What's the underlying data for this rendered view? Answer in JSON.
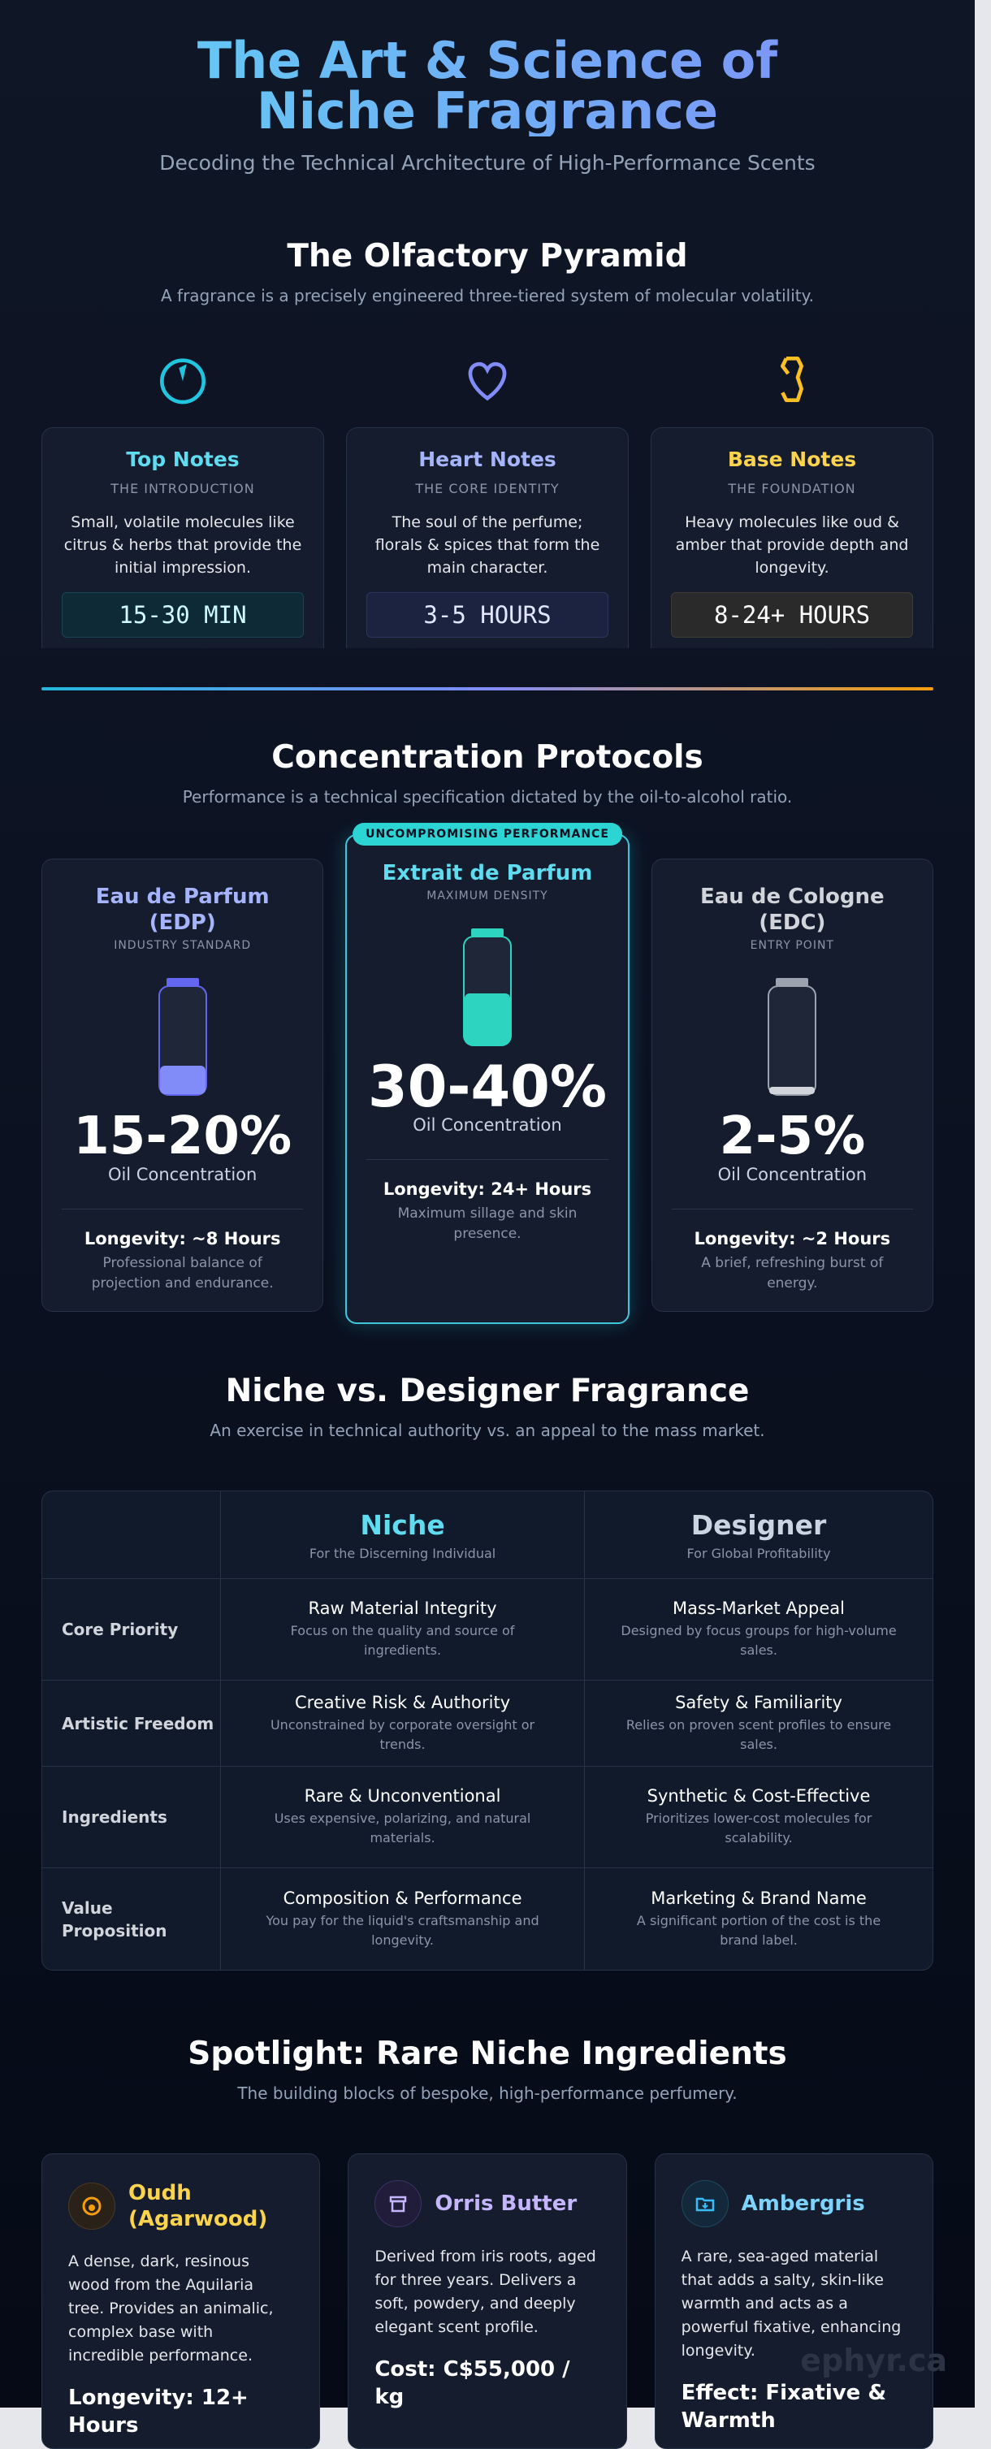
{
  "header": {
    "title": "The Art & Science of Niche Fragrance",
    "subtitle": "Decoding the Technical Architecture of High-Performance Scents"
  },
  "pyramid": {
    "title": "The Olfactory Pyramid",
    "subtitle": "A fragrance is a precisely engineered three-tiered system of molecular volatility.",
    "tiers": [
      {
        "name": "Top Notes",
        "label": "THE INTRODUCTION",
        "description": "Small, volatile molecules like citrus & herbs that provide the initial impression.",
        "duration": "15-30 MIN"
      },
      {
        "name": "Heart Notes",
        "label": "THE CORE IDENTITY",
        "description": "The soul of the perfume; florals & spices that form the main character.",
        "duration": "3-5 HOURS"
      },
      {
        "name": "Base Notes",
        "label": "THE FOUNDATION",
        "description": "Heavy molecules like oud & amber that provide depth and longevity.",
        "duration": "8-24+ HOURS"
      }
    ]
  },
  "concentration": {
    "title": "Concentration Protocols",
    "subtitle": "Performance is a technical specification dictated by the oil-to-alcohol ratio.",
    "badge": "UNCOMPROMISING PERFORMANCE",
    "cards": [
      {
        "name": "Eau de Parfum (EDP)",
        "label": "INDUSTRY STANDARD",
        "percent": "15-20%",
        "percent_label": "Oil Concentration",
        "longevity": "Longevity: ~8 Hours",
        "note": "Professional balance of projection and endurance."
      },
      {
        "name": "Extrait de Parfum",
        "label": "MAXIMUM DENSITY",
        "percent": "30-40%",
        "percent_label": "Oil Concentration",
        "longevity": "Longevity: 24+ Hours",
        "note": "Maximum sillage and skin presence."
      },
      {
        "name": "Eau de Cologne (EDC)",
        "label": "ENTRY POINT",
        "percent": "2-5%",
        "percent_label": "Oil Concentration",
        "longevity": "Longevity: ~2 Hours",
        "note": "A brief, refreshing burst of energy."
      }
    ]
  },
  "comparison": {
    "title": "Niche vs. Designer Fragrance",
    "subtitle": "An exercise in technical authority vs. an appeal to the mass market.",
    "columns": [
      {
        "name": "Niche",
        "tagline": "For the Discerning Individual"
      },
      {
        "name": "Designer",
        "tagline": "For Global Profitability"
      }
    ],
    "rows": [
      {
        "label": "Core Priority",
        "cells": [
          {
            "title": "Raw Material Integrity",
            "text": "Focus on the quality and source of ingredients."
          },
          {
            "title": "Mass-Market Appeal",
            "text": "Designed by focus groups for high-volume sales."
          }
        ]
      },
      {
        "label": "Artistic Freedom",
        "cells": [
          {
            "title": "Creative Risk & Authority",
            "text": "Unconstrained by corporate oversight or trends."
          },
          {
            "title": "Safety & Familiarity",
            "text": "Relies on proven scent profiles to ensure sales."
          }
        ]
      },
      {
        "label": "Ingredients",
        "cells": [
          {
            "title": "Rare & Unconventional",
            "text": "Uses expensive, polarizing, and natural materials."
          },
          {
            "title": "Synthetic & Cost-Effective",
            "text": "Prioritizes lower-cost molecules for scalability."
          }
        ]
      },
      {
        "label": "Value Proposition",
        "cells": [
          {
            "title": "Composition & Performance",
            "text": "You pay for the liquid's craftsmanship and longevity."
          },
          {
            "title": "Marketing & Brand Name",
            "text": "A significant portion of the cost is the brand label."
          }
        ]
      }
    ]
  },
  "spotlight": {
    "title": "Spotlight: Rare Niche Ingredients",
    "subtitle": "The building blocks of bespoke, high-performance perfumery.",
    "ingredients": [
      {
        "name": "Oudh (Agarwood)",
        "description": "A dense, dark, resinous wood from the Aquilaria tree. Provides an animalic, complex base with incredible performance.",
        "highlight": "Longevity: 12+ Hours"
      },
      {
        "name": "Orris Butter",
        "description": "Derived from iris roots, aged for three years. Delivers a soft, powdery, and deeply elegant scent profile.",
        "highlight": "Cost: C$55,000 / kg"
      },
      {
        "name": "Ambergris",
        "description": "A rare, sea-aged material that adds a salty, skin-like warmth and acts as a powerful fixative, enhancing longevity.",
        "highlight": "Effect: Fixative & Warmth"
      }
    ]
  },
  "watermark": "ephyr.ca"
}
